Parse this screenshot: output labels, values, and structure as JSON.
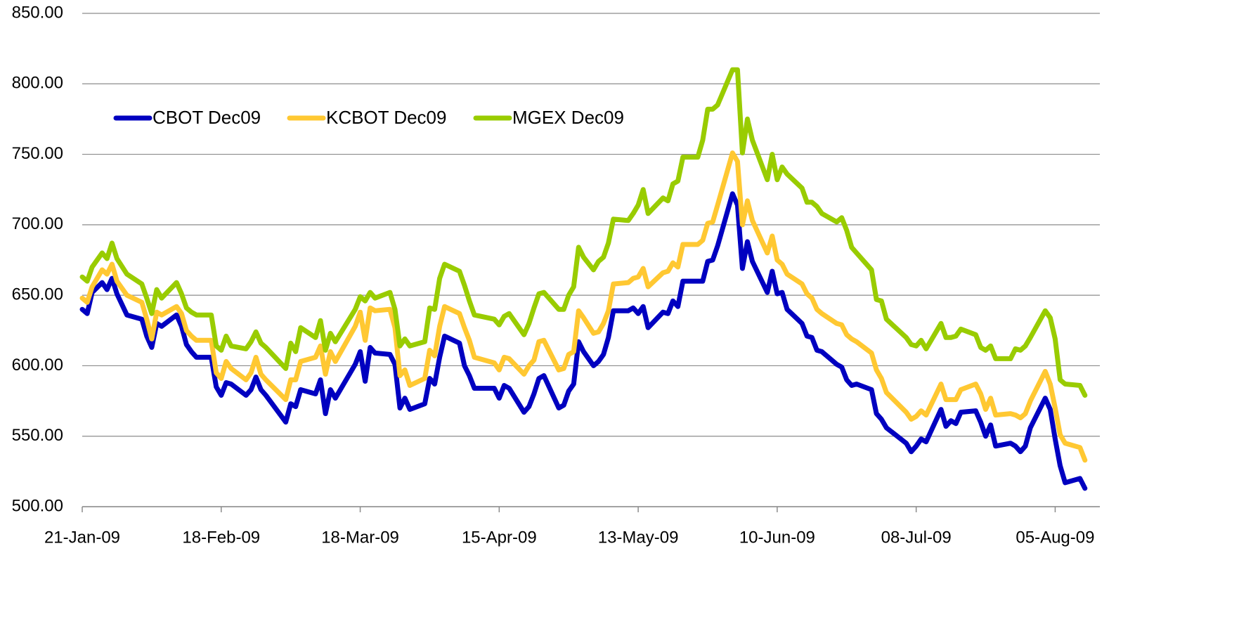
{
  "chart_data": {
    "type": "line",
    "x": [
      0,
      1,
      2,
      4,
      5,
      6,
      7,
      9,
      12,
      13,
      14,
      15,
      16,
      19,
      20,
      21,
      22,
      23,
      26,
      27,
      28,
      29,
      30,
      33,
      34,
      35,
      36,
      37,
      41,
      42,
      43,
      44,
      47,
      48,
      49,
      50,
      51,
      55,
      56,
      57,
      58,
      59,
      62,
      63,
      64,
      65,
      66,
      69,
      70,
      71,
      72,
      73,
      76,
      77,
      78,
      79,
      83,
      84,
      85,
      86,
      89,
      90,
      91,
      92,
      93,
      96,
      97,
      98,
      99,
      100,
      101,
      103,
      104,
      105,
      106,
      107,
      110,
      111,
      112,
      113,
      114,
      117,
      118,
      119,
      120,
      121,
      124,
      125,
      126,
      127,
      128,
      131,
      132,
      133,
      134,
      135,
      138,
      139,
      140,
      141,
      142,
      145,
      146,
      147,
      148,
      149,
      152,
      153,
      154,
      155,
      156,
      159,
      160,
      161,
      162,
      166,
      167,
      168,
      169,
      170,
      173,
      174,
      175,
      176,
      177,
      180,
      181,
      182,
      183,
      184,
      187,
      188,
      189,
      190,
      191,
      194,
      195,
      196,
      197,
      198,
      201,
      202
    ],
    "series": [
      {
        "name": "CBOT Dec09",
        "color": "#0000c0",
        "values": [
          640,
          637,
          652,
          659,
          654,
          662,
          651,
          636,
          633,
          621,
          613,
          630,
          628,
          636,
          628,
          615,
          610,
          606,
          606,
          585,
          579,
          588,
          587,
          579,
          583,
          592,
          583,
          579,
          560,
          573,
          571,
          583,
          580,
          590,
          566,
          583,
          577,
          601,
          610,
          589,
          613,
          609,
          608,
          601,
          570,
          577,
          569,
          573,
          591,
          587,
          606,
          621,
          616,
          600,
          593,
          584,
          584,
          577,
          586,
          584,
          567,
          571,
          580,
          591,
          593,
          570,
          572,
          582,
          587,
          617,
          610,
          600,
          603,
          608,
          620,
          639,
          639,
          641,
          637,
          642,
          627,
          638,
          637,
          646,
          642,
          660,
          660,
          660,
          674,
          675,
          685,
          722,
          714,
          669,
          688,
          674,
          652,
          667,
          651,
          652,
          640,
          630,
          621,
          620,
          611,
          610,
          601,
          599,
          590,
          586,
          587,
          583,
          566,
          562,
          556,
          545,
          539,
          543,
          548,
          546,
          569,
          557,
          561,
          559,
          567,
          568,
          560,
          550,
          558,
          543,
          545,
          543,
          539,
          543,
          556,
          577,
          569,
          548,
          529,
          517,
          520,
          513
        ]
      },
      {
        "name": "KCBOT Dec09",
        "color": "#ffc832",
        "values": [
          648,
          645,
          656,
          668,
          665,
          672,
          660,
          650,
          645,
          633,
          619,
          638,
          636,
          642,
          637,
          625,
          621,
          618,
          618,
          595,
          591,
          603,
          598,
          590,
          595,
          606,
          594,
          590,
          576,
          590,
          590,
          603,
          606,
          614,
          594,
          610,
          603,
          628,
          638,
          618,
          641,
          639,
          640,
          627,
          593,
          597,
          586,
          591,
          611,
          607,
          628,
          642,
          637,
          627,
          618,
          606,
          602,
          597,
          606,
          605,
          594,
          600,
          604,
          617,
          618,
          597,
          598,
          608,
          610,
          639,
          634,
          623,
          624,
          630,
          639,
          658,
          659,
          662,
          663,
          669,
          656,
          666,
          667,
          673,
          670,
          686,
          686,
          689,
          701,
          702,
          714,
          751,
          745,
          700,
          717,
          703,
          680,
          692,
          675,
          672,
          665,
          658,
          651,
          648,
          640,
          637,
          630,
          629,
          622,
          619,
          617,
          609,
          597,
          591,
          581,
          567,
          562,
          564,
          568,
          565,
          587,
          576,
          576,
          576,
          583,
          587,
          580,
          569,
          577,
          565,
          566,
          565,
          563,
          566,
          575,
          596,
          587,
          570,
          551,
          545,
          542,
          533
        ]
      },
      {
        "name": "MGEX Dec09",
        "color": "#99cc00",
        "values": [
          663,
          660,
          670,
          680,
          676,
          687,
          676,
          665,
          658,
          648,
          637,
          654,
          648,
          659,
          651,
          641,
          638,
          636,
          636,
          614,
          611,
          621,
          614,
          612,
          617,
          624,
          616,
          613,
          598,
          616,
          610,
          627,
          620,
          632,
          611,
          623,
          617,
          640,
          649,
          646,
          652,
          648,
          652,
          640,
          614,
          619,
          614,
          617,
          641,
          640,
          662,
          672,
          667,
          657,
          646,
          636,
          633,
          629,
          635,
          637,
          622,
          630,
          641,
          651,
          652,
          640,
          640,
          650,
          656,
          684,
          677,
          668,
          674,
          677,
          687,
          704,
          703,
          708,
          714,
          725,
          708,
          719,
          717,
          729,
          731,
          748,
          748,
          760,
          782,
          782,
          785,
          810,
          810,
          751,
          775,
          760,
          732,
          750,
          732,
          741,
          736,
          726,
          716,
          716,
          713,
          708,
          702,
          705,
          696,
          684,
          680,
          668,
          647,
          646,
          633,
          620,
          615,
          614,
          618,
          612,
          630,
          620,
          620,
          621,
          626,
          622,
          613,
          611,
          614,
          605,
          605,
          612,
          611,
          614,
          620,
          639,
          634,
          619,
          590,
          587,
          586,
          579
        ]
      }
    ],
    "xlim": [
      0,
      205
    ],
    "xticks": [
      {
        "value": 0,
        "label": "21-Jan-09"
      },
      {
        "value": 28,
        "label": "18-Feb-09"
      },
      {
        "value": 56,
        "label": "18-Mar-09"
      },
      {
        "value": 84,
        "label": "15-Apr-09"
      },
      {
        "value": 112,
        "label": "13-May-09"
      },
      {
        "value": 140,
        "label": "10-Jun-09"
      },
      {
        "value": 168,
        "label": "08-Jul-09"
      },
      {
        "value": 196,
        "label": "05-Aug-09"
      }
    ],
    "ylim": [
      500,
      850
    ],
    "yticks": [
      {
        "value": 500,
        "label": "500.00"
      },
      {
        "value": 550,
        "label": "550.00"
      },
      {
        "value": 600,
        "label": "600.00"
      },
      {
        "value": 650,
        "label": "650.00"
      },
      {
        "value": 700,
        "label": "700.00"
      },
      {
        "value": 750,
        "label": "750.00"
      },
      {
        "value": 800,
        "label": "800.00"
      },
      {
        "value": 850,
        "label": "850.00"
      }
    ],
    "grid": true,
    "legend": "upper left"
  }
}
